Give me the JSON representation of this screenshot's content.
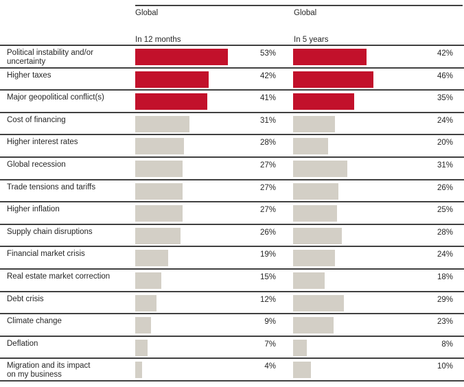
{
  "chart_data": {
    "type": "bar",
    "orientation": "horizontal",
    "layout": "paired-columns-table",
    "title": "",
    "column_groups": [
      {
        "group": "Global",
        "period": "In 12 months"
      },
      {
        "group": "Global",
        "period": "In 5 years"
      }
    ],
    "categories": [
      "Political instability and/or\nuncertainty",
      "Higher taxes",
      "Major geopolitical conflict(s)",
      "Cost of financing",
      "Higher interest rates",
      "Global recession",
      "Trade tensions and tariffs",
      "Higher inflation",
      "Supply chain disruptions",
      "Financial market crisis",
      "Real estate market correction",
      "Debt crisis",
      "Climate change",
      "Deflation",
      "Migration and its impact\non my business"
    ],
    "series": [
      {
        "name": "In 12 months",
        "values": [
          53,
          42,
          41,
          31,
          28,
          27,
          27,
          27,
          26,
          19,
          15,
          12,
          9,
          7,
          4
        ]
      },
      {
        "name": "In 5 years",
        "values": [
          42,
          46,
          35,
          24,
          20,
          31,
          26,
          25,
          28,
          24,
          18,
          29,
          23,
          8,
          10
        ]
      }
    ],
    "unit": "%",
    "value_axis_range": [
      0,
      56
    ],
    "grid": false,
    "legend": false,
    "highlight_top": 3,
    "colors": {
      "highlight_bar": "#c2112b",
      "default_bar": "#d3cfc6",
      "rule_line": "#404040",
      "text": "#262626"
    }
  }
}
